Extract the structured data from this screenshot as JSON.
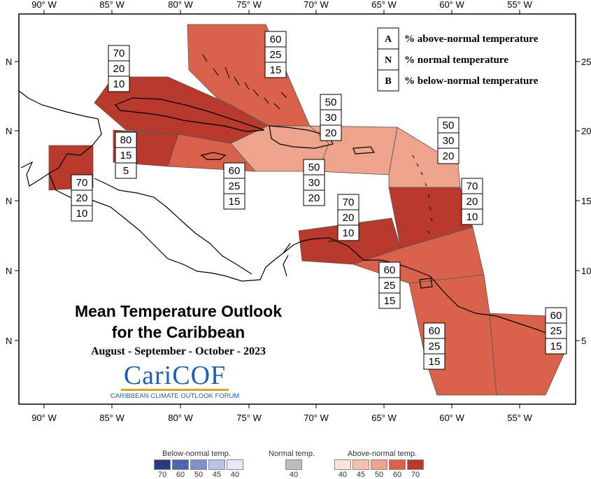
{
  "map": {
    "axis_labels": {
      "longitudes": [
        "90° W",
        "85° W",
        "80° W",
        "75° W",
        "70° W",
        "65° W",
        "60° W",
        "55° W"
      ],
      "lat_left": [
        "N",
        "N",
        "N",
        "N",
        "N"
      ],
      "lat_right": [
        "25",
        "20",
        "15",
        "10",
        "5"
      ]
    },
    "regions": [
      {
        "id": "bahamas",
        "above": "60",
        "normal": "25",
        "below": "15",
        "category": "60",
        "color": "#d8624a"
      },
      {
        "id": "cuba",
        "above": "70",
        "normal": "20",
        "below": "10",
        "category": "70",
        "color": "#b83a2c"
      },
      {
        "id": "cayman",
        "above": "80",
        "normal": "15",
        "below": "5",
        "category": "70",
        "color": "#b83a2c"
      },
      {
        "id": "jamaica",
        "above": "60",
        "normal": "25",
        "below": "15",
        "category": "60",
        "color": "#d8624a"
      },
      {
        "id": "hispaniola",
        "above": "50",
        "normal": "30",
        "below": "20",
        "category": "50",
        "color": "#eea38c"
      },
      {
        "id": "puerto-rico",
        "above": "50",
        "normal": "30",
        "below": "20",
        "category": "50",
        "color": "#eea38c"
      },
      {
        "id": "leeward",
        "above": "50",
        "normal": "30",
        "below": "20",
        "category": "50",
        "color": "#eea38c"
      },
      {
        "id": "windward",
        "above": "70",
        "normal": "20",
        "below": "10",
        "category": "70",
        "color": "#b83a2c"
      },
      {
        "id": "abc-islands",
        "above": "70",
        "normal": "20",
        "below": "10",
        "category": "70",
        "color": "#b83a2c"
      },
      {
        "id": "belize",
        "above": "70",
        "normal": "20",
        "below": "10",
        "category": "70",
        "color": "#b83a2c"
      },
      {
        "id": "trinidad",
        "above": "60",
        "normal": "25",
        "below": "15",
        "category": "60",
        "color": "#d8624a"
      },
      {
        "id": "guyana",
        "above": "60",
        "normal": "25",
        "below": "15",
        "category": "60",
        "color": "#d8624a"
      },
      {
        "id": "suriname",
        "above": "60",
        "normal": "25",
        "below": "15",
        "category": "60",
        "color": "#d8624a"
      }
    ]
  },
  "key": {
    "items": [
      {
        "letter": "A",
        "text": "% above-normal temperature"
      },
      {
        "letter": "N",
        "text": "% normal temperature"
      },
      {
        "letter": "B",
        "text": "% below-normal temperature"
      }
    ]
  },
  "title": {
    "line1": "Mean Temperature Outlook",
    "line2": "for the Caribbean",
    "period": "August - September - October - 2023"
  },
  "logo": {
    "word": "CariCOF",
    "subtitle": "CARIBBEAN CLIMATE OUTLOOK FORUM"
  },
  "scale": {
    "below_title": "Below-normal temp.",
    "normal_title": "Normal temp.",
    "above_title": "Above-normal temp.",
    "below": [
      {
        "label": "70",
        "color": "#2b3a7a"
      },
      {
        "label": "60",
        "color": "#5062b0"
      },
      {
        "label": "50",
        "color": "#8190cc"
      },
      {
        "label": "45",
        "color": "#b9c2e4"
      },
      {
        "label": "40",
        "color": "#e6eaf6"
      }
    ],
    "normal": [
      {
        "label": "40",
        "color": "#bdbdbd"
      }
    ],
    "above": [
      {
        "label": "40",
        "color": "#fbe4dc"
      },
      {
        "label": "45",
        "color": "#f4c0ad"
      },
      {
        "label": "50",
        "color": "#eea38c"
      },
      {
        "label": "60",
        "color": "#d8624a"
      },
      {
        "label": "70",
        "color": "#b83a2c"
      }
    ]
  }
}
